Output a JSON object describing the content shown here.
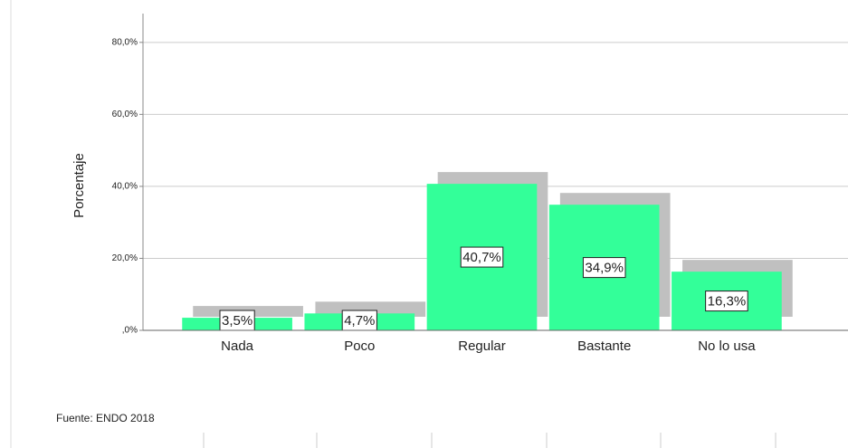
{
  "chart_data": {
    "type": "bar",
    "y_axis_label": "Porcentaje",
    "source": "Fuente: ENDO 2018",
    "categories": [
      "Nada",
      "Poco",
      "Regular",
      "Bastante",
      "No lo usa"
    ],
    "values": [
      3.5,
      4.7,
      40.7,
      34.9,
      16.3
    ],
    "value_labels": [
      "3,5%",
      "4,7%",
      "40,7%",
      "34,9%",
      "16,3%"
    ],
    "color": "#33ff99",
    "shadow_color": "#c0c0c0",
    "ylim": [
      0,
      88
    ],
    "yticks": [
      {
        "value": 0,
        "label": ",0%"
      },
      {
        "value": 20,
        "label": "20,0%"
      },
      {
        "value": 40,
        "label": "40,0%"
      },
      {
        "value": 60,
        "label": "60,0%"
      },
      {
        "value": 80,
        "label": "80,0%"
      }
    ],
    "grid": true
  }
}
